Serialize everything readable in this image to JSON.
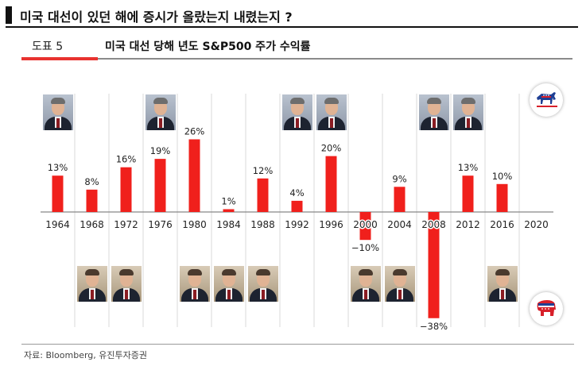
{
  "headline": "미국 대선이 있던 해에 증시가 올랐는지 내렸는지 ?",
  "figure": {
    "label": "도표 5",
    "title": "미국 대선 당해 년도 S&P500 주가 수익률"
  },
  "source": "자료: Bloomberg, 유진투자증권",
  "colors": {
    "bar": "#f0201c",
    "accent": "#e8322f",
    "democrat": "#1f3f94",
    "republican": "#d8202a"
  },
  "chart_data": {
    "type": "bar",
    "categories": [
      "1964",
      "1968",
      "1972",
      "1976",
      "1980",
      "1984",
      "1988",
      "1992",
      "1996",
      "2000",
      "2004",
      "2008",
      "2012",
      "2016",
      "2020"
    ],
    "values": [
      13,
      8,
      16,
      19,
      26,
      1,
      12,
      4,
      20,
      -10,
      9,
      -38,
      13,
      10,
      null
    ],
    "data_labels": [
      "13%",
      "8%",
      "16%",
      "19%",
      "26%",
      "1%",
      "12%",
      "4%",
      "20%",
      "−10%",
      "9%",
      "−38%",
      "13%",
      "10%",
      ""
    ],
    "winning_party": [
      "democrat",
      "republican",
      "republican",
      "democrat",
      "republican",
      "republican",
      "republican",
      "democrat",
      "democrat",
      "republican",
      "republican",
      "democrat",
      "democrat",
      "republican",
      ""
    ],
    "grid": "vertical",
    "legend": "party icons right"
  },
  "icons": {
    "democrat": "donkey-icon",
    "republican": "elephant-icon"
  }
}
